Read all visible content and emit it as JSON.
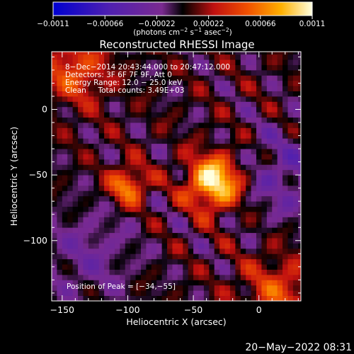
{
  "chart_data": {
    "type": "heatmap",
    "title": "Reconstructed RHESSI Image",
    "xlabel": "Heliocentric X (arcsec)",
    "ylabel": "Heliocentric Y (arcsec)",
    "xlim": [
      -158,
      32
    ],
    "ylim": [
      -146,
      44
    ],
    "x_ticks": [
      -150,
      -100,
      -50,
      0
    ],
    "x_tick_labels": [
      "−150",
      "−100",
      "−50",
      "0"
    ],
    "y_ticks": [
      0,
      -50,
      -100
    ],
    "y_tick_labels": [
      "0",
      "−50",
      "−100"
    ],
    "colorbar": {
      "range": [
        -0.0011,
        0.0011
      ],
      "ticks": [
        -0.0011,
        -0.00066,
        -0.00022,
        0.00022,
        0.00066,
        0.0011
      ],
      "tick_labels": [
        "−0.0011",
        "−0.00066",
        "−0.00022",
        "0.00022",
        "0.00066",
        "0.0011"
      ],
      "unit_base": "(photons cm",
      "unit_exp1": "−2",
      "unit_mid": " s",
      "unit_exp2": "−1",
      "unit_end": " asec",
      "unit_exp3": "−2",
      "unit_close": ")"
    },
    "peak": {
      "x": -34,
      "y": -55
    },
    "annotations": [
      "8−Dec−2014 20:43:44.000 to 20:47:12.000",
      "Detectors: 3F 6F 7F 9F, Att 0",
      "Energy Range: 12.0 − 25.0 keV",
      "Clean     Total counts: 3.49E+03"
    ],
    "peak_label": "Position of Peak = [−34,−55]"
  },
  "footer": {
    "date": "20−May−2022 08:31"
  },
  "colors": {
    "background": "#000000",
    "foreground": "#ffffff"
  }
}
